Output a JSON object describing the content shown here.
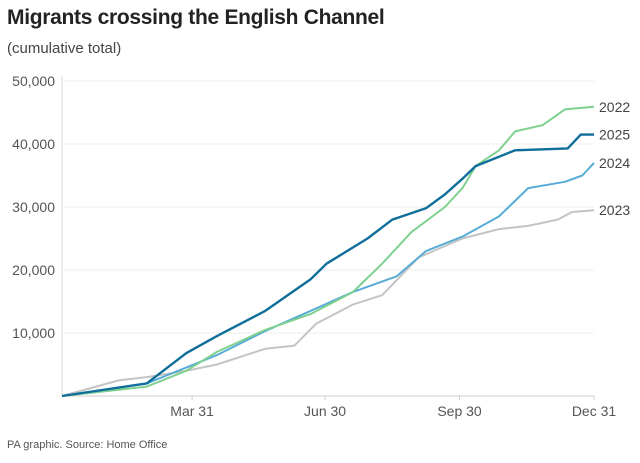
{
  "title": "Migrants crossing the English Channel",
  "subtitle": "(cumulative total)",
  "source": "PA graphic. Source: Home Office",
  "chart_data": {
    "type": "line",
    "title": "Migrants crossing the English Channel",
    "subtitle": "(cumulative total)",
    "xlabel": "",
    "ylabel": "",
    "x_unit": "date (month-day)",
    "xlim": [
      "01-01",
      "12-31"
    ],
    "ylim": [
      0,
      50000
    ],
    "grid": true,
    "y_ticks": [
      10000,
      20000,
      30000,
      40000,
      50000
    ],
    "y_tick_labels": [
      "10,000",
      "20,000",
      "30,000",
      "40,000",
      "50,000"
    ],
    "x_ticks": [
      "03-31",
      "06-30",
      "09-30",
      "12-31"
    ],
    "x_tick_labels": [
      "Mar 31",
      "Jun 30",
      "Sep 30",
      "Dec 31"
    ],
    "legend": "inline labels at line ends",
    "series": [
      {
        "name": "2023",
        "color": "#c4c4c4",
        "x": [
          "01-01",
          "02-09",
          "02-28",
          "03-27",
          "04-17",
          "05-20",
          "06-09",
          "06-24",
          "07-19",
          "08-08",
          "09-02",
          "10-02",
          "10-27",
          "11-16",
          "12-06",
          "12-16",
          "12-31"
        ],
        "values": [
          0,
          2500,
          3000,
          4000,
          5000,
          7500,
          8000,
          11500,
          14500,
          16000,
          22000,
          25000,
          26500,
          27000,
          28000,
          29200,
          29500
        ]
      },
      {
        "name": "2024",
        "color": "#58acd6",
        "x": [
          "01-01",
          "02-28",
          "03-27",
          "04-17",
          "05-20",
          "06-20",
          "07-19",
          "08-18",
          "09-07",
          "10-02",
          "10-27",
          "11-16",
          "12-11",
          "12-23",
          "12-31"
        ],
        "values": [
          0,
          2000,
          4500,
          6500,
          10300,
          13500,
          16500,
          19000,
          23000,
          25300,
          28500,
          33000,
          34000,
          35000,
          37000
        ]
      },
      {
        "name": "2022",
        "color": "#7fd18f",
        "x": [
          "01-01",
          "02-28",
          "03-27",
          "04-17",
          "05-20",
          "06-20",
          "07-19",
          "08-08",
          "08-28",
          "09-20",
          "10-02",
          "10-11",
          "10-27",
          "11-07",
          "11-26",
          "12-11",
          "12-31"
        ],
        "values": [
          0,
          1500,
          4000,
          7000,
          10500,
          13000,
          16500,
          21000,
          26000,
          30000,
          33000,
          36500,
          39000,
          42000,
          43000,
          45500,
          45900
        ]
      },
      {
        "name": "2025",
        "color": "#0f6f9a",
        "x": [
          "01-01",
          "02-28",
          "03-27",
          "04-17",
          "05-20",
          "06-20",
          "07-01",
          "07-29",
          "08-15",
          "09-07",
          "09-20",
          "10-02",
          "10-11",
          "11-07",
          "12-13",
          "12-22",
          "12-31"
        ],
        "values": [
          0,
          2000,
          6800,
          9500,
          13500,
          18500,
          21000,
          25000,
          28000,
          29800,
          32000,
          34500,
          36500,
          39000,
          39300,
          41500,
          41500
        ]
      }
    ]
  }
}
